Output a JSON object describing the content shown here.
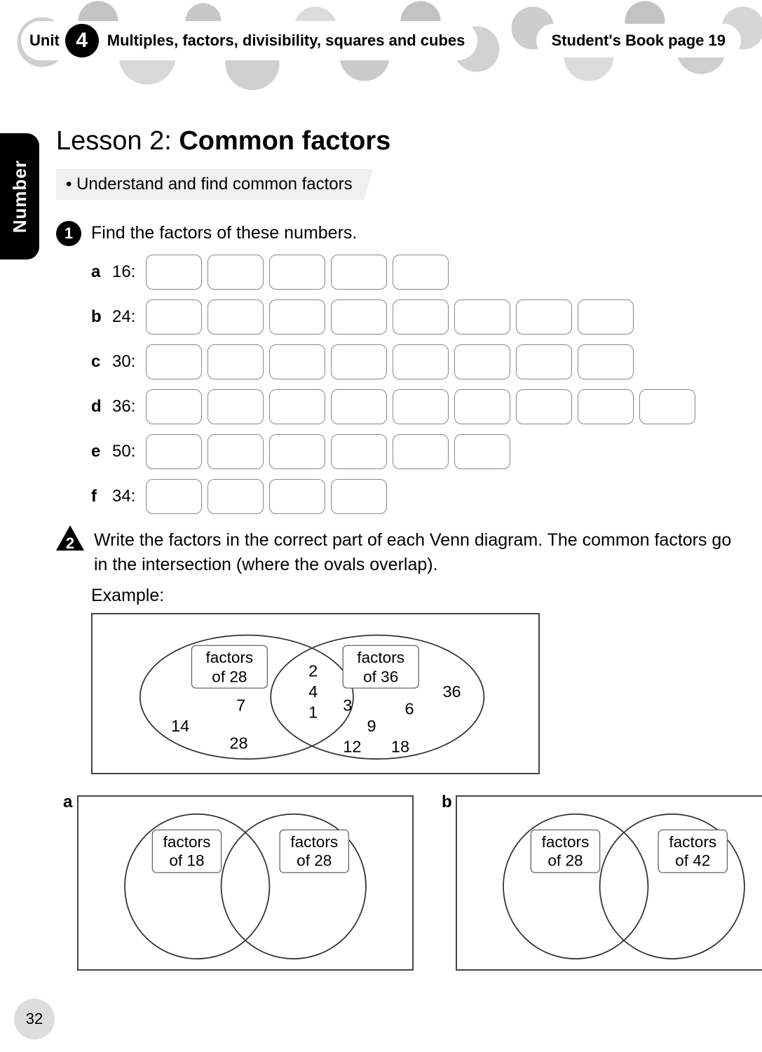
{
  "header": {
    "unit_label": "Unit",
    "unit_number": "4",
    "unit_title": "Multiples, factors, divisibility, squares and cubes",
    "book_ref": "Student's Book page 19"
  },
  "side_tab": "Number",
  "lesson": {
    "prefix": "Lesson 2: ",
    "title": "Common factors"
  },
  "objective": "Understand and find common factors",
  "q1": {
    "number": "1",
    "text": "Find the factors of these numbers.",
    "rows": [
      {
        "letter": "a",
        "num": "16:",
        "boxes": 5
      },
      {
        "letter": "b",
        "num": "24:",
        "boxes": 8
      },
      {
        "letter": "c",
        "num": "30:",
        "boxes": 8
      },
      {
        "letter": "d",
        "num": "36:",
        "boxes": 9
      },
      {
        "letter": "e",
        "num": "50:",
        "boxes": 6
      },
      {
        "letter": "f",
        "num": "34:",
        "boxes": 4
      }
    ]
  },
  "q2": {
    "number": "2",
    "text": "Write the factors in the correct part of each Venn diagram. The common factors go in the intersection (where the ovals overlap).",
    "example_label": "Example:",
    "example": {
      "left_label_l1": "factors",
      "left_label_l2": "of 28",
      "right_label_l1": "factors",
      "right_label_l2": "of 36",
      "left_nums": [
        "7",
        "14",
        "28"
      ],
      "mid_nums": [
        "2",
        "4",
        "1"
      ],
      "right_nums": [
        "3",
        "6",
        "9",
        "12",
        "18",
        "36"
      ]
    },
    "sub_a": {
      "letter": "a",
      "left_l1": "factors",
      "left_l2": "of 18",
      "right_l1": "factors",
      "right_l2": "of 28"
    },
    "sub_b": {
      "letter": "b",
      "left_l1": "factors",
      "left_l2": "of 28",
      "right_l1": "factors",
      "right_l2": "of 42"
    }
  },
  "page_number": "32",
  "colors": {
    "box_border": "#888888",
    "venn_stroke": "#333333",
    "text": "#000000"
  }
}
